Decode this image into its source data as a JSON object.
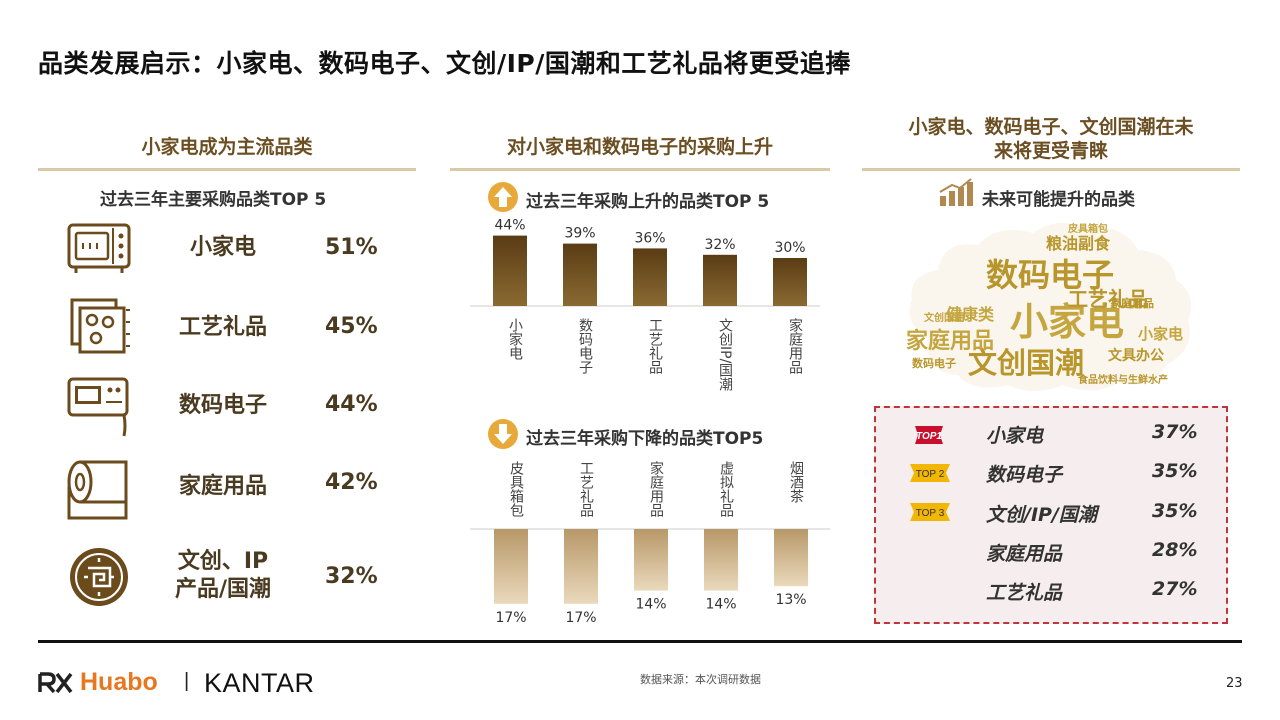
{
  "page": {
    "title": "品类发展启示：小家电、数码电子、文创/IP/国潮和工艺礼品将更受追捧",
    "source": "数据来源：本次调研数据",
    "page_number": "23",
    "brand_huabo": "Huabo",
    "brand_divider": "|",
    "brand_kantar": "KANTAR"
  },
  "left": {
    "heading": "小家电成为主流品类",
    "subheading": "过去三年主要采购品类TOP 5",
    "items": [
      {
        "name": "小家电",
        "pct": "51%",
        "icon": "microwave-icon"
      },
      {
        "name": "工艺礼品",
        "pct": "45%",
        "icon": "craft-gift-icon"
      },
      {
        "name": "数码电子",
        "pct": "44%",
        "icon": "digital-device-icon"
      },
      {
        "name": "家庭用品",
        "pct": "42%",
        "icon": "paper-roll-icon"
      },
      {
        "name_line1": "文创、IP",
        "name_line2": "产品/国潮",
        "pct": "32%",
        "icon": "chinese-pattern-icon"
      }
    ]
  },
  "middle": {
    "heading": "对小家电和数码电子的采购上升",
    "up_title": "过去三年采购上升的品类TOP 5",
    "down_title": "过去三年采购下降的品类TOP5"
  },
  "right": {
    "heading_line1": "小家电、数码电子、文创国潮在未",
    "heading_line2": "来将更受青睐",
    "subheading": "未来可能提升的品类",
    "wordcloud": [
      "数码电子",
      "小家电",
      "文创国潮",
      "家庭用品",
      "工艺礼品",
      "粮油副食",
      "健康类",
      "文具办公",
      "小家电",
      "家庭用品",
      "文创国潮",
      "数码电子",
      "食品饮料与生鲜水产",
      "皮具箱包"
    ],
    "ranking": [
      {
        "badge": "TOP1",
        "name": "小家电",
        "pct": "37%"
      },
      {
        "badge": "TOP 2",
        "name": "数码电子",
        "pct": "35%"
      },
      {
        "badge": "TOP 3",
        "name": "文创/IP/国潮",
        "pct": "35%"
      },
      {
        "badge": "",
        "name": "家庭用品",
        "pct": "28%"
      },
      {
        "badge": "",
        "name": "工艺礼品",
        "pct": "27%"
      }
    ],
    "colors": {
      "top1": "#c8102e",
      "top23": "#f2b705",
      "dashed_border": "#c0353a"
    }
  },
  "chart_data": [
    {
      "type": "bar",
      "title": "过去三年采购上升的品类TOP 5",
      "categories": [
        "小家电",
        "数码电子",
        "工艺礼品",
        "文创IP/国潮",
        "家庭用品"
      ],
      "values": [
        44,
        39,
        36,
        32,
        30
      ],
      "value_labels": [
        "44%",
        "39%",
        "36%",
        "32%",
        "30%"
      ],
      "ylim": [
        0,
        50
      ],
      "color": "#6b4a1c"
    },
    {
      "type": "bar",
      "title": "过去三年采购下降的品类TOP5",
      "categories": [
        "皮具箱包",
        "工艺礼品",
        "家庭用品",
        "虚拟礼品",
        "烟酒茶"
      ],
      "values": [
        17,
        17,
        14,
        14,
        13
      ],
      "value_labels": [
        "17%",
        "17%",
        "14%",
        "14%",
        "13%"
      ],
      "ylim": [
        0,
        50
      ],
      "color": "#d2b48c"
    }
  ]
}
